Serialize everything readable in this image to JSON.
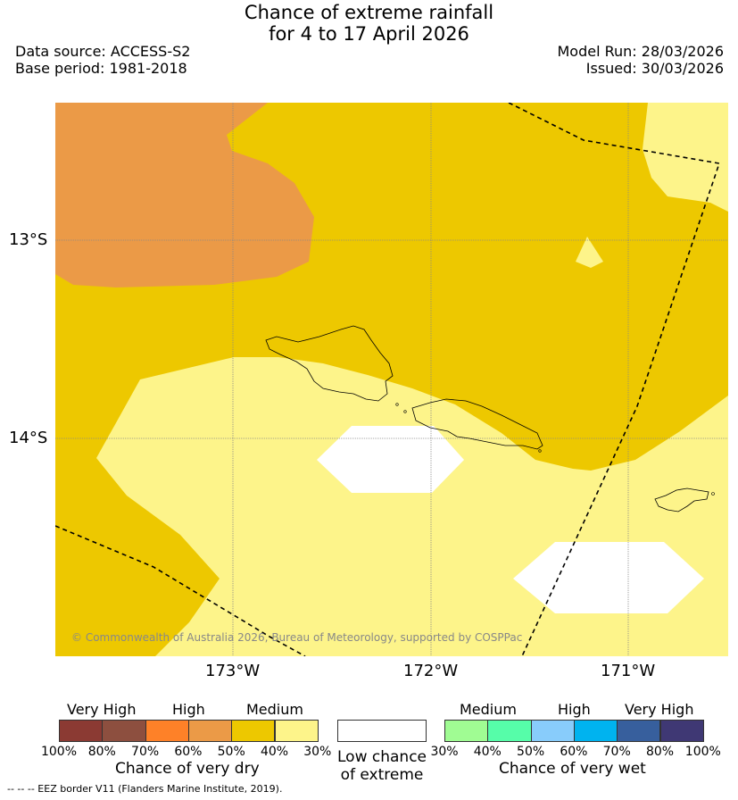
{
  "title": {
    "line1": "Chance of extreme rainfall",
    "line2": "for 4 to 17 April 2026"
  },
  "meta": {
    "data_source": "Data source: ACCESS-S2",
    "base_period": "Base period: 1981-2018",
    "model_run": "Model Run: 28/03/2026",
    "issued": "Issued: 30/03/2026"
  },
  "map": {
    "lat_labels": [
      "13°S",
      "14°S"
    ],
    "lon_labels": [
      "173°W",
      "172°W",
      "171°W"
    ],
    "copyright": "© Commonwealth of Australia 2026, Bureau of Meteorology, supported by COSPPac",
    "colors": {
      "orange": "#eb9a47",
      "gold": "#edc800",
      "pale": "#fdf48a",
      "white": "#ffffff"
    }
  },
  "legend": {
    "dry": {
      "heads": [
        "Very High",
        "High",
        "Medium"
      ],
      "colors": [
        "#8b3a33",
        "#8d4f3f",
        "#fe8128",
        "#eb9a47",
        "#edc800",
        "#fdf48a"
      ],
      "pcts": [
        "100%",
        "80%",
        "70%",
        "60%",
        "50%",
        "40%",
        "30%"
      ],
      "title": "Chance of very dry"
    },
    "low": {
      "line1": "Low chance",
      "line2": "of extreme"
    },
    "wet": {
      "heads": [
        "Medium",
        "High",
        "Very High"
      ],
      "colors": [
        "#a0fc93",
        "#56fda9",
        "#88ccfb",
        "#00b3ef",
        "#375f9d",
        "#3f3874"
      ],
      "pcts": [
        "30%",
        "40%",
        "50%",
        "60%",
        "70%",
        "80%",
        "100%"
      ],
      "title": "Chance of very wet"
    }
  },
  "footnote": "--  --  -- EEZ border V11 (Flanders Marine Institute, 2019)."
}
